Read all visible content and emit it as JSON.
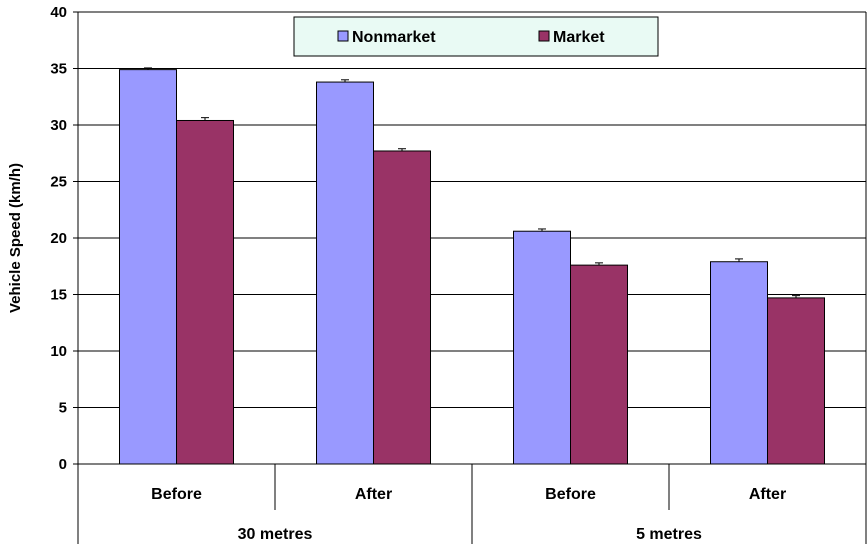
{
  "chart_data": {
    "type": "bar",
    "title": "",
    "ylabel": "Vehicle Speed (km/h)",
    "xlabel": "",
    "ylim": [
      0,
      40
    ],
    "yticks": [
      0,
      5,
      10,
      15,
      20,
      25,
      30,
      35,
      40
    ],
    "grid": true,
    "legend_position": "top-center",
    "categories": [
      "Before",
      "After",
      "Before",
      "After"
    ],
    "groups": [
      {
        "label": "30 metres",
        "span": 2
      },
      {
        "label": "5 metres",
        "span": 2
      }
    ],
    "series": [
      {
        "name": "Nonmarket",
        "color": "#9999FF",
        "values": [
          34.9,
          33.8,
          20.6,
          17.9
        ],
        "errors": [
          0.15,
          0.2,
          0.2,
          0.25
        ]
      },
      {
        "name": "Market",
        "color": "#993366",
        "values": [
          30.4,
          27.7,
          17.6,
          14.7
        ],
        "errors": [
          0.25,
          0.2,
          0.2,
          0.2
        ]
      }
    ]
  }
}
